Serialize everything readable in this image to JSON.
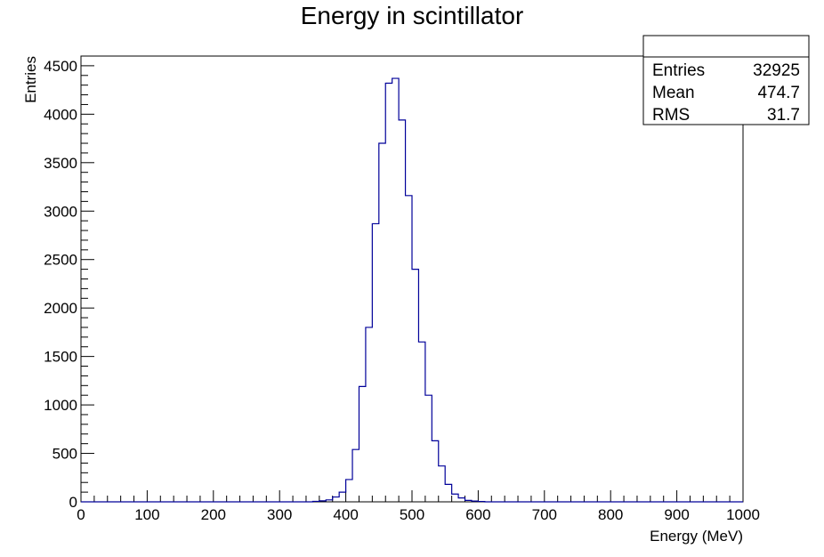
{
  "chart_data": {
    "type": "histogram",
    "title": "Energy in scintillator",
    "xlabel": "Energy (MeV)",
    "ylabel": "Entries",
    "xlim": [
      0,
      1000
    ],
    "ylim": [
      0,
      4600
    ],
    "bin_width": 10,
    "line_color": "#000099",
    "x_ticks": [
      0,
      100,
      200,
      300,
      400,
      500,
      600,
      700,
      800,
      900,
      1000
    ],
    "y_ticks": [
      0,
      500,
      1000,
      1500,
      2000,
      2500,
      3000,
      3500,
      4000,
      4500
    ],
    "bins": [
      {
        "x": 350,
        "y": 5
      },
      {
        "x": 360,
        "y": 10
      },
      {
        "x": 370,
        "y": 20
      },
      {
        "x": 380,
        "y": 50
      },
      {
        "x": 390,
        "y": 100
      },
      {
        "x": 400,
        "y": 230
      },
      {
        "x": 410,
        "y": 540
      },
      {
        "x": 420,
        "y": 1190
      },
      {
        "x": 430,
        "y": 1800
      },
      {
        "x": 440,
        "y": 2870
      },
      {
        "x": 450,
        "y": 3700
      },
      {
        "x": 460,
        "y": 4320
      },
      {
        "x": 470,
        "y": 4370
      },
      {
        "x": 480,
        "y": 3940
      },
      {
        "x": 490,
        "y": 3160
      },
      {
        "x": 500,
        "y": 2400
      },
      {
        "x": 510,
        "y": 1650
      },
      {
        "x": 520,
        "y": 1100
      },
      {
        "x": 530,
        "y": 630
      },
      {
        "x": 540,
        "y": 370
      },
      {
        "x": 550,
        "y": 180
      },
      {
        "x": 560,
        "y": 80
      },
      {
        "x": 570,
        "y": 40
      },
      {
        "x": 580,
        "y": 15
      },
      {
        "x": 590,
        "y": 8
      },
      {
        "x": 600,
        "y": 4
      }
    ]
  },
  "stats_box": {
    "rows": [
      {
        "label": "Entries",
        "value": "32925"
      },
      {
        "label": "Mean",
        "value": "474.7"
      },
      {
        "label": "RMS",
        "value": "31.7"
      }
    ]
  }
}
